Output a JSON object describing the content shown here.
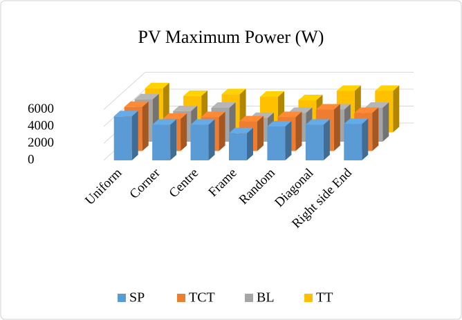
{
  "chart_data": {
    "type": "bar3d",
    "title": "PV Maximum Power (W)",
    "categories": [
      "Uniform",
      "Corner",
      "Centre",
      "Frame",
      "Random",
      "Diagonal",
      "Right side End"
    ],
    "series": [
      {
        "name": "SP",
        "color": "#5b9bd5",
        "values": [
          5200,
          4200,
          4200,
          3200,
          4000,
          4200,
          4300
        ]
      },
      {
        "name": "TCT",
        "color": "#ed7d31",
        "values": [
          5200,
          3800,
          4000,
          3500,
          4000,
          4900,
          4500
        ]
      },
      {
        "name": "BL",
        "color": "#a5a5a5",
        "values": [
          5000,
          3600,
          4000,
          2800,
          3400,
          3800,
          4000
        ]
      },
      {
        "name": "TT",
        "color": "#ffc000",
        "values": [
          5200,
          4300,
          4500,
          4200,
          3800,
          4900,
          4900
        ]
      }
    ],
    "ylim": [
      0,
      6000
    ],
    "yticks": [
      0,
      2000,
      4000,
      6000
    ],
    "grid": true,
    "legend": "bottom"
  }
}
